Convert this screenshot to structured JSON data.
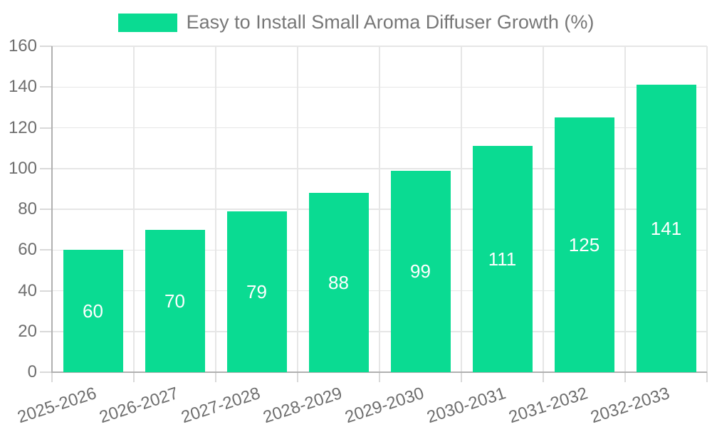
{
  "chart_data": {
    "type": "bar",
    "title": "Easy to Install Small Aroma Diffuser Growth (%)",
    "legend_position": "top",
    "categories": [
      "2025-2026",
      "2026-2027",
      "2027-2028",
      "2028-2029",
      "2029-2030",
      "2030-2031",
      "2031-2032",
      "2032-2033"
    ],
    "values": [
      60,
      70,
      79,
      88,
      99,
      111,
      125,
      141
    ],
    "value_labels": [
      "60",
      "70",
      "79",
      "88",
      "99",
      "111",
      "125",
      "141"
    ],
    "xlabel": "",
    "ylabel": "",
    "ylim": [
      0,
      160
    ],
    "yticks": [
      0,
      20,
      40,
      60,
      80,
      100,
      120,
      140,
      160
    ],
    "grid": true,
    "colors": {
      "bar": "#0adb92",
      "value_label": "#ffffff",
      "grid_line": "#e6e6e6",
      "tick_line": "#d9d9d9",
      "axis_line": "#b0b0b0",
      "axis_text": "#6e6e6e",
      "legend_text": "#777777",
      "background": "#ffffff"
    }
  }
}
